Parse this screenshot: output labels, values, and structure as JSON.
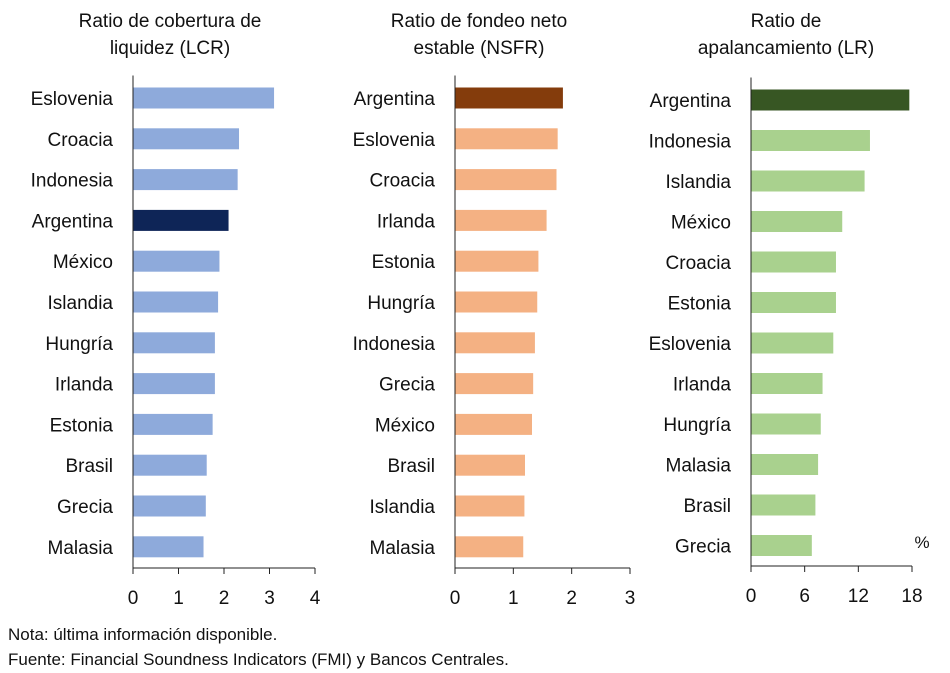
{
  "chart_data": [
    {
      "type": "bar",
      "orientation": "horizontal",
      "title_lines": [
        "Ratio de cobertura de",
        "liquidez (LCR)"
      ],
      "categories": [
        "Eslovenia",
        "Croacia",
        "Indonesia",
        "Argentina",
        "México",
        "Islandia",
        "Hungría",
        "Irlanda",
        "Estonia",
        "Brasil",
        "Grecia",
        "Malasia"
      ],
      "values": [
        3.1,
        2.33,
        2.3,
        2.1,
        1.9,
        1.87,
        1.8,
        1.8,
        1.75,
        1.62,
        1.6,
        1.55
      ],
      "xlim": [
        0,
        4
      ],
      "xticks": [
        "0",
        "1",
        "2",
        "3",
        "4"
      ],
      "unit": "",
      "color": "#8eaadb",
      "highlight_category": "Argentina",
      "highlight_color": "#0e2557"
    },
    {
      "type": "bar",
      "orientation": "horizontal",
      "title_lines": [
        "Ratio de fondeo neto",
        "estable (NSFR)"
      ],
      "categories": [
        "Argentina",
        "Eslovenia",
        "Croacia",
        "Irlanda",
        "Estonia",
        "Hungría",
        "Indonesia",
        "Grecia",
        "México",
        "Brasil",
        "Islandia",
        "Malasia"
      ],
      "values": [
        1.85,
        1.76,
        1.74,
        1.57,
        1.43,
        1.41,
        1.37,
        1.34,
        1.32,
        1.2,
        1.19,
        1.17
      ],
      "xlim": [
        0,
        3
      ],
      "xticks": [
        "0",
        "1",
        "2",
        "3"
      ],
      "unit": "",
      "color": "#f4b183",
      "highlight_category": "Argentina",
      "highlight_color": "#843c0c"
    },
    {
      "type": "bar",
      "orientation": "horizontal",
      "title_lines": [
        "Ratio de",
        "apalancamiento (LR)"
      ],
      "categories": [
        "Argentina",
        "Indonesia",
        "Islandia",
        "México",
        "Croacia",
        "Estonia",
        "Eslovenia",
        "Irlanda",
        "Hungría",
        "Malasia",
        "Brasil",
        "Grecia"
      ],
      "values": [
        17.7,
        13.3,
        12.7,
        10.2,
        9.5,
        9.5,
        9.2,
        8.0,
        7.8,
        7.5,
        7.2,
        6.8
      ],
      "xlim": [
        0,
        18
      ],
      "xticks": [
        "0",
        "6",
        "12",
        "18"
      ],
      "unit": "%",
      "color": "#a9d18e",
      "highlight_category": "Argentina",
      "highlight_color": "#375623"
    }
  ],
  "notes": {
    "nota": "Nota: última información disponible.",
    "fuente": "Fuente: Financial Soundness Indicators (FMI) y Bancos Centrales."
  }
}
